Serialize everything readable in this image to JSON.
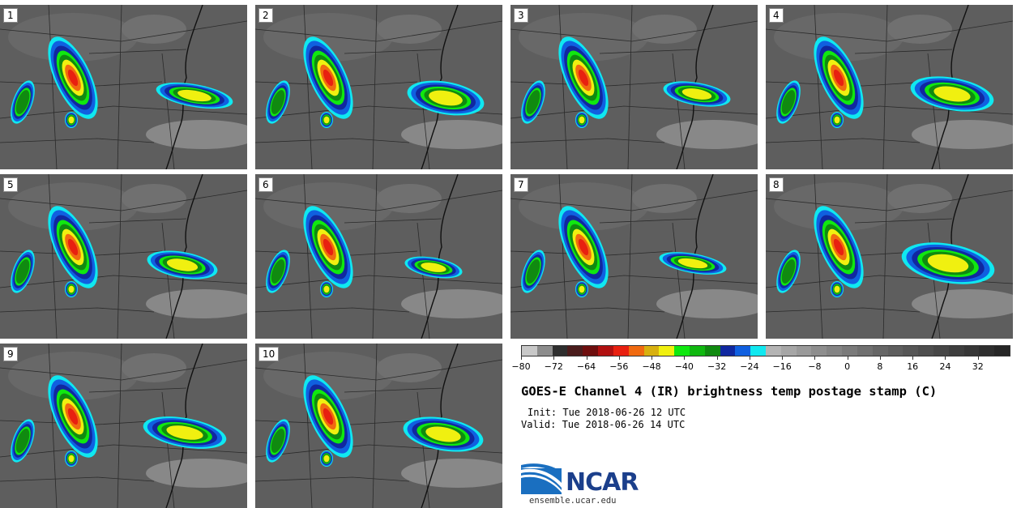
{
  "title": "GOES-E Channel 4 (IR) brightness temp postage stamp (C)",
  "init_text": "Init: Tue 2018-06-26 12 UTC",
  "valid_text": "Valid: Tue 2018-06-26 14 UTC",
  "site": "ensemble.ucar.edu",
  "logo_text": "NCAR",
  "logo_icon": "ncar-wave-icon",
  "panels": [
    {
      "label": "1"
    },
    {
      "label": "2"
    },
    {
      "label": "3"
    },
    {
      "label": "4"
    },
    {
      "label": "5"
    },
    {
      "label": "6"
    },
    {
      "label": "7"
    },
    {
      "label": "8"
    },
    {
      "label": "9"
    },
    {
      "label": "10"
    }
  ],
  "colorbar": {
    "min": -80,
    "max": 40,
    "tick_labels": [
      "-80",
      "-72",
      "-64",
      "-56",
      "-48",
      "-40",
      "-32",
      "-24",
      "-16",
      "-8",
      "0",
      "8",
      "16",
      "24",
      "32"
    ],
    "tick_values": [
      -80,
      -72,
      -64,
      -56,
      -48,
      -40,
      -32,
      -24,
      -16,
      -8,
      0,
      8,
      16,
      24,
      32
    ],
    "colors": [
      "#c8c8c8",
      "#8c8c8c",
      "#2e2e2e",
      "#4a1c1c",
      "#6e0e0e",
      "#b01010",
      "#e82010",
      "#f06a10",
      "#d8b010",
      "#f0f010",
      "#10e810",
      "#10b810",
      "#108a10",
      "#1028a0",
      "#1060e0",
      "#10e8f0",
      "#b4b4b4",
      "#a6a6a6",
      "#9a9a9a",
      "#8e8e8e",
      "#848484",
      "#7a7a7a",
      "#707070",
      "#666666",
      "#5e5e5e",
      "#565656",
      "#4e4e4e",
      "#464646",
      "#3e3e3e",
      "#363636",
      "#2e2e2e",
      "#262626"
    ]
  }
}
